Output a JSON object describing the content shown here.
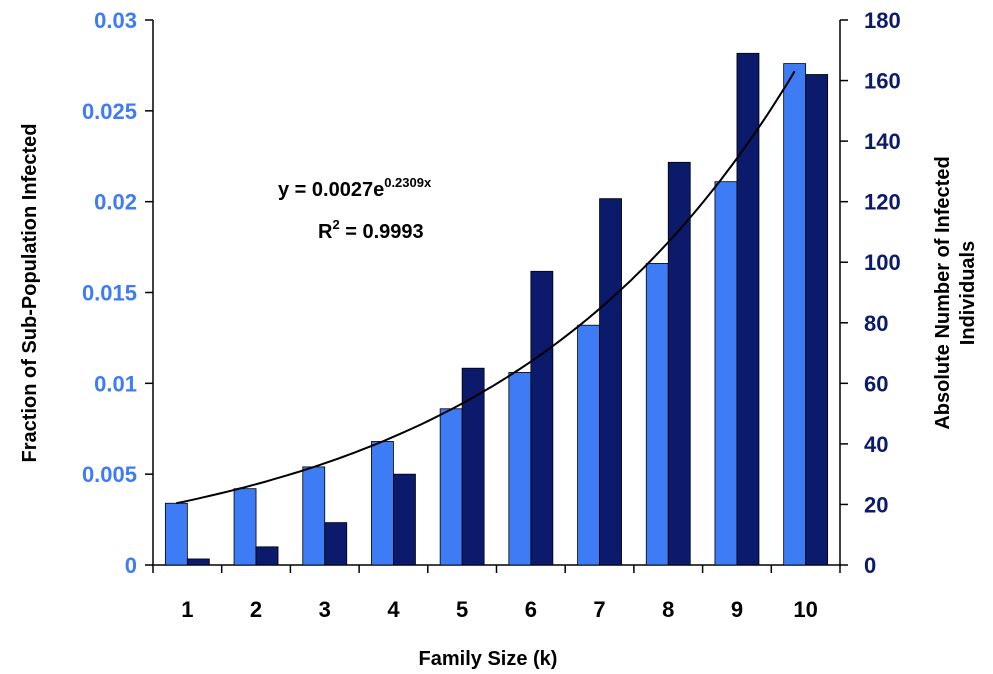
{
  "chart_data": {
    "type": "bar",
    "xlabel": "Family Size (k)",
    "ylabel_left": "Fraction of Sub-Population Infected",
    "ylabel_right": [
      "Absolute Number of Infected",
      "Individuals"
    ],
    "categories": [
      "1",
      "2",
      "3",
      "4",
      "5",
      "6",
      "7",
      "8",
      "9",
      "10"
    ],
    "left_axis": {
      "range": [
        0,
        0.03
      ],
      "ticks": [
        0,
        0.005,
        0.01,
        0.015,
        0.02,
        0.025,
        0.03
      ],
      "tick_labels": [
        "0",
        "0.005",
        "0.01",
        "0.015",
        "0.02",
        "0.025",
        "0.03"
      ],
      "color": "#3d7cf4"
    },
    "right_axis": {
      "range": [
        0,
        180
      ],
      "ticks": [
        0,
        20,
        40,
        60,
        80,
        100,
        120,
        140,
        160,
        180
      ],
      "tick_labels": [
        "0",
        "20",
        "40",
        "60",
        "80",
        "100",
        "120",
        "140",
        "160",
        "180"
      ],
      "color": "#0c1a6b"
    },
    "series": [
      {
        "axis": "left",
        "color": "#3d7cf4",
        "values": [
          0.0034,
          0.0042,
          0.0054,
          0.0068,
          0.0086,
          0.0106,
          0.0132,
          0.0166,
          0.0211,
          0.0276
        ]
      },
      {
        "axis": "right",
        "color": "#0c1a6b",
        "values": [
          2,
          6,
          14,
          30,
          65,
          97,
          121,
          133,
          169,
          162
        ]
      }
    ],
    "trendline": {
      "type": "exponential",
      "a": 0.0027,
      "b": 0.2309,
      "axis": "left",
      "color": "#000000",
      "equation_base": "y = 0.0027e",
      "equation_exponent": "0.2309x",
      "r2_prefix": "R",
      "r2_exponent": "2",
      "r2_value": " = 0.9993"
    },
    "legend": "none",
    "grid": false
  }
}
